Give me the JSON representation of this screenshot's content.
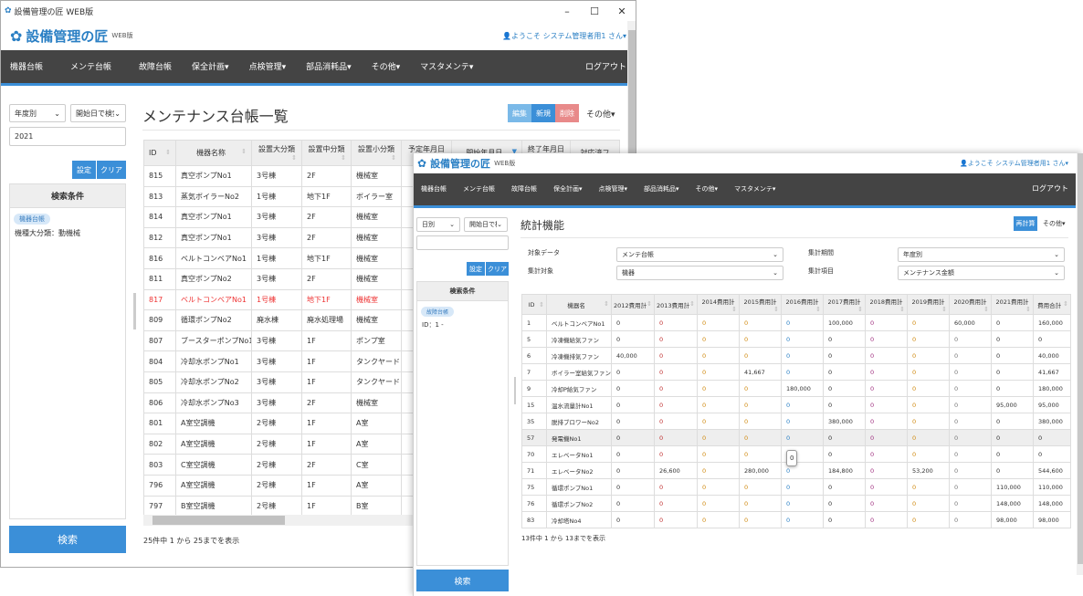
{
  "window1": {
    "title": "設備管理の匠 WEB版",
    "controls": [
      "–",
      "☐",
      "✕"
    ],
    "logo": "設備管理の匠",
    "logo_sub": "WEB版",
    "user": "ようこそ システム管理者用1 さん▾",
    "nav": [
      "機器台帳",
      "メンテ台帳",
      "故障台帳",
      "保全計画▾",
      "点検管理▾",
      "部品消耗品▾",
      "その他▾",
      "マスタメンテ▾"
    ],
    "logout": "ログアウト",
    "filter1": "年度別",
    "filter2": "開始日で検索",
    "year": "2021",
    "set": "設定",
    "clear": "クリア",
    "cond_title": "検索条件",
    "cond_badge": "機器台帳",
    "cond_text": "機種大分類：動機械",
    "search": "検索",
    "page_title": "メンテナンス台帳一覧",
    "edit": "編集",
    "new": "新規",
    "delete": "削除",
    "other": "その他▾",
    "columns": [
      "ID",
      "機器名称",
      "設置大分類",
      "設置中分類",
      "設置小分類",
      "予定年月日",
      "開始年月日",
      "終了年月日",
      "対応済フ"
    ],
    "rows": [
      [
        "815",
        "真空ポンプNo1",
        "3号棟",
        "2F",
        "機械室"
      ],
      [
        "813",
        "蒸気ボイラーNo2",
        "1号棟",
        "地下1F",
        "ボイラー室"
      ],
      [
        "814",
        "真空ポンプNo1",
        "3号棟",
        "2F",
        "機械室"
      ],
      [
        "812",
        "真空ポンプNo1",
        "3号棟",
        "2F",
        "機械室"
      ],
      [
        "816",
        "ベルトコンベアNo1",
        "1号棟",
        "地下1F",
        "機械室"
      ],
      [
        "811",
        "真空ポンプNo2",
        "3号棟",
        "2F",
        "機械室"
      ],
      [
        "817",
        "ベルトコンベアNo1",
        "1号棟",
        "地下1F",
        "機械室"
      ],
      [
        "809",
        "循環ポンプNo2",
        "廃水棟",
        "廃水処理場",
        "機械室"
      ],
      [
        "807",
        "ブースターポンプNo1",
        "3号棟",
        "1F",
        "ポンプ室"
      ],
      [
        "804",
        "冷却水ポンプNo1",
        "3号棟",
        "1F",
        "タンクヤード"
      ],
      [
        "805",
        "冷却水ポンプNo2",
        "3号棟",
        "1F",
        "タンクヤード"
      ],
      [
        "806",
        "冷却水ポンプNo3",
        "3号棟",
        "2F",
        "機械室"
      ],
      [
        "801",
        "A室空調機",
        "2号棟",
        "1F",
        "A室"
      ],
      [
        "802",
        "A室空調機",
        "2号棟",
        "1F",
        "A室"
      ],
      [
        "803",
        "C室空調機",
        "2号棟",
        "2F",
        "C室"
      ],
      [
        "796",
        "A室空調機",
        "2号棟",
        "1F",
        "A室"
      ],
      [
        "797",
        "B室空調機",
        "2号棟",
        "1F",
        "B室"
      ]
    ],
    "highlight_row_id": "817",
    "footer": "25件中 1 から 25までを表示"
  },
  "window2": {
    "logo": "設備管理の匠",
    "logo_sub": "WEB版",
    "user": "ようこそ システム管理者用1 さん▾",
    "nav": [
      "機器台帳",
      "メンテ台帳",
      "故障台帳",
      "保全計画▾",
      "点検管理▾",
      "部品消耗品▾",
      "その他▾",
      "マスタメンテ▾"
    ],
    "logout": "ログアウト",
    "filter1": "日別",
    "filter2": "開始日で検索",
    "set": "設定",
    "clear": "クリア",
    "cond_title": "検索条件",
    "cond_badge": "故障台帳",
    "cond_text": "ID：1 -",
    "search": "検索",
    "page_title": "統計機能",
    "recalc": "再計算",
    "other": "その他▾",
    "form": {
      "target_data_label": "対象データ",
      "target_data": "メンテ台帳",
      "agg_target_label": "集計対象",
      "agg_target": "機器",
      "period_label": "集計期間",
      "period": "年度別",
      "item_label": "集計項目",
      "item": "メンテナンス金額"
    },
    "columns": [
      "ID",
      "機器名",
      "2012費用計",
      "2013費用計",
      "2014費用計",
      "2015費用計",
      "2016費用計",
      "2017費用計",
      "2018費用計",
      "2019費用計",
      "2020費用計",
      "2021費用計",
      "費用合計"
    ],
    "value_colors": [
      "#333",
      "#c03030",
      "#d08a10",
      "#d08a10",
      "#2a7fc4",
      "#333",
      "#a03080",
      "#d08a10",
      "#777",
      "#333",
      "#333"
    ],
    "rows": [
      [
        "1",
        "ベルトコンベアNo1",
        "0",
        "0",
        "0",
        "0",
        "0",
        "100,000",
        "0",
        "0",
        "60,000",
        "0",
        "160,000"
      ],
      [
        "5",
        "冷凍機給気ファン",
        "0",
        "0",
        "0",
        "0",
        "0",
        "0",
        "0",
        "0",
        "0",
        "0",
        "0"
      ],
      [
        "6",
        "冷凍機排気ファン",
        "40,000",
        "0",
        "0",
        "0",
        "0",
        "0",
        "0",
        "0",
        "0",
        "0",
        "40,000"
      ],
      [
        "7",
        "ボイラー室給気ファン",
        "0",
        "0",
        "0",
        "41,667",
        "0",
        "0",
        "0",
        "0",
        "0",
        "0",
        "41,667"
      ],
      [
        "9",
        "冷却P給気ファン",
        "0",
        "0",
        "0",
        "0",
        "180,000",
        "0",
        "0",
        "0",
        "0",
        "0",
        "180,000"
      ],
      [
        "15",
        "温水流量計No1",
        "0",
        "0",
        "0",
        "0",
        "0",
        "0",
        "0",
        "0",
        "0",
        "95,000",
        "95,000"
      ],
      [
        "35",
        "脱排ブロワーNo2",
        "0",
        "0",
        "0",
        "0",
        "0",
        "380,000",
        "0",
        "0",
        "0",
        "0",
        "380,000"
      ],
      [
        "57",
        "発電機No1",
        "0",
        "0",
        "0",
        "0",
        "0",
        "0",
        "0",
        "0",
        "0",
        "0",
        "0"
      ],
      [
        "70",
        "エレベータNo1",
        "0",
        "0",
        "0",
        "0",
        "0",
        "0",
        "0",
        "0",
        "0",
        "0",
        "0"
      ],
      [
        "71",
        "エレベータNo2",
        "0",
        "26,600",
        "0",
        "280,000",
        "0",
        "184,800",
        "0",
        "53,200",
        "0",
        "0",
        "544,600"
      ],
      [
        "75",
        "循環ポンプNo1",
        "0",
        "0",
        "0",
        "0",
        "0",
        "0",
        "0",
        "0",
        "0",
        "110,000",
        "110,000"
      ],
      [
        "76",
        "循環ポンプNo2",
        "0",
        "0",
        "0",
        "0",
        "0",
        "0",
        "0",
        "0",
        "0",
        "148,000",
        "148,000"
      ],
      [
        "83",
        "冷却塔No4",
        "0",
        "0",
        "0",
        "0",
        "0",
        "0",
        "0",
        "0",
        "0",
        "98,000",
        "98,000"
      ]
    ],
    "hover_row_id": "57",
    "tooltip": "0",
    "footer": "13件中 1 から 13までを表示"
  }
}
